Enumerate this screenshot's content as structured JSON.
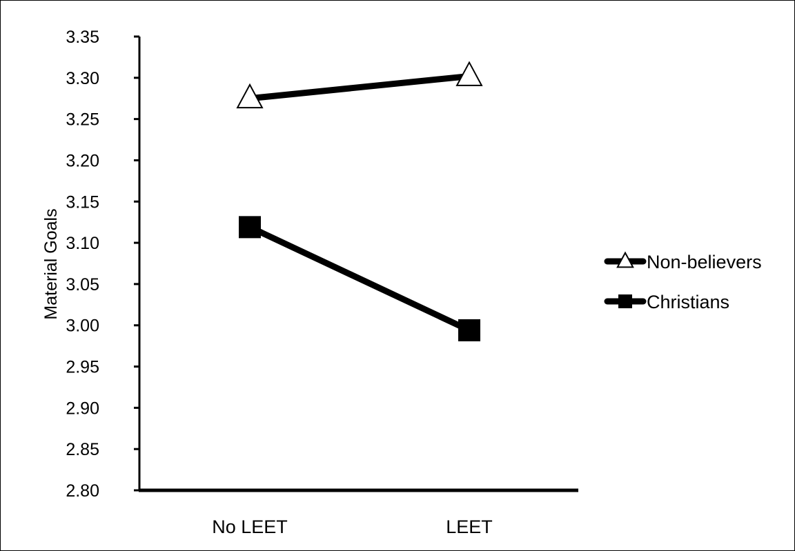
{
  "chart_data": {
    "type": "line",
    "categories": [
      "No LEET",
      "LEET"
    ],
    "series": [
      {
        "name": "Non-believers",
        "values": [
          3.275,
          3.302
        ],
        "marker": "triangle-open"
      },
      {
        "name": "Christians",
        "values": [
          3.119,
          2.994
        ],
        "marker": "square-filled"
      }
    ],
    "title": "",
    "xlabel": "",
    "ylabel": "Material Goals",
    "ylim": [
      2.8,
      3.35
    ],
    "yticks": [
      "2.80",
      "2.85",
      "2.90",
      "2.95",
      "3.00",
      "3.05",
      "3.10",
      "3.15",
      "3.20",
      "3.25",
      "3.30",
      "3.35"
    ],
    "grid": false,
    "legend": "right",
    "colors": {
      "line": "#000000",
      "marker_fill_open": "#ffffff",
      "marker_fill_solid": "#000000"
    }
  }
}
